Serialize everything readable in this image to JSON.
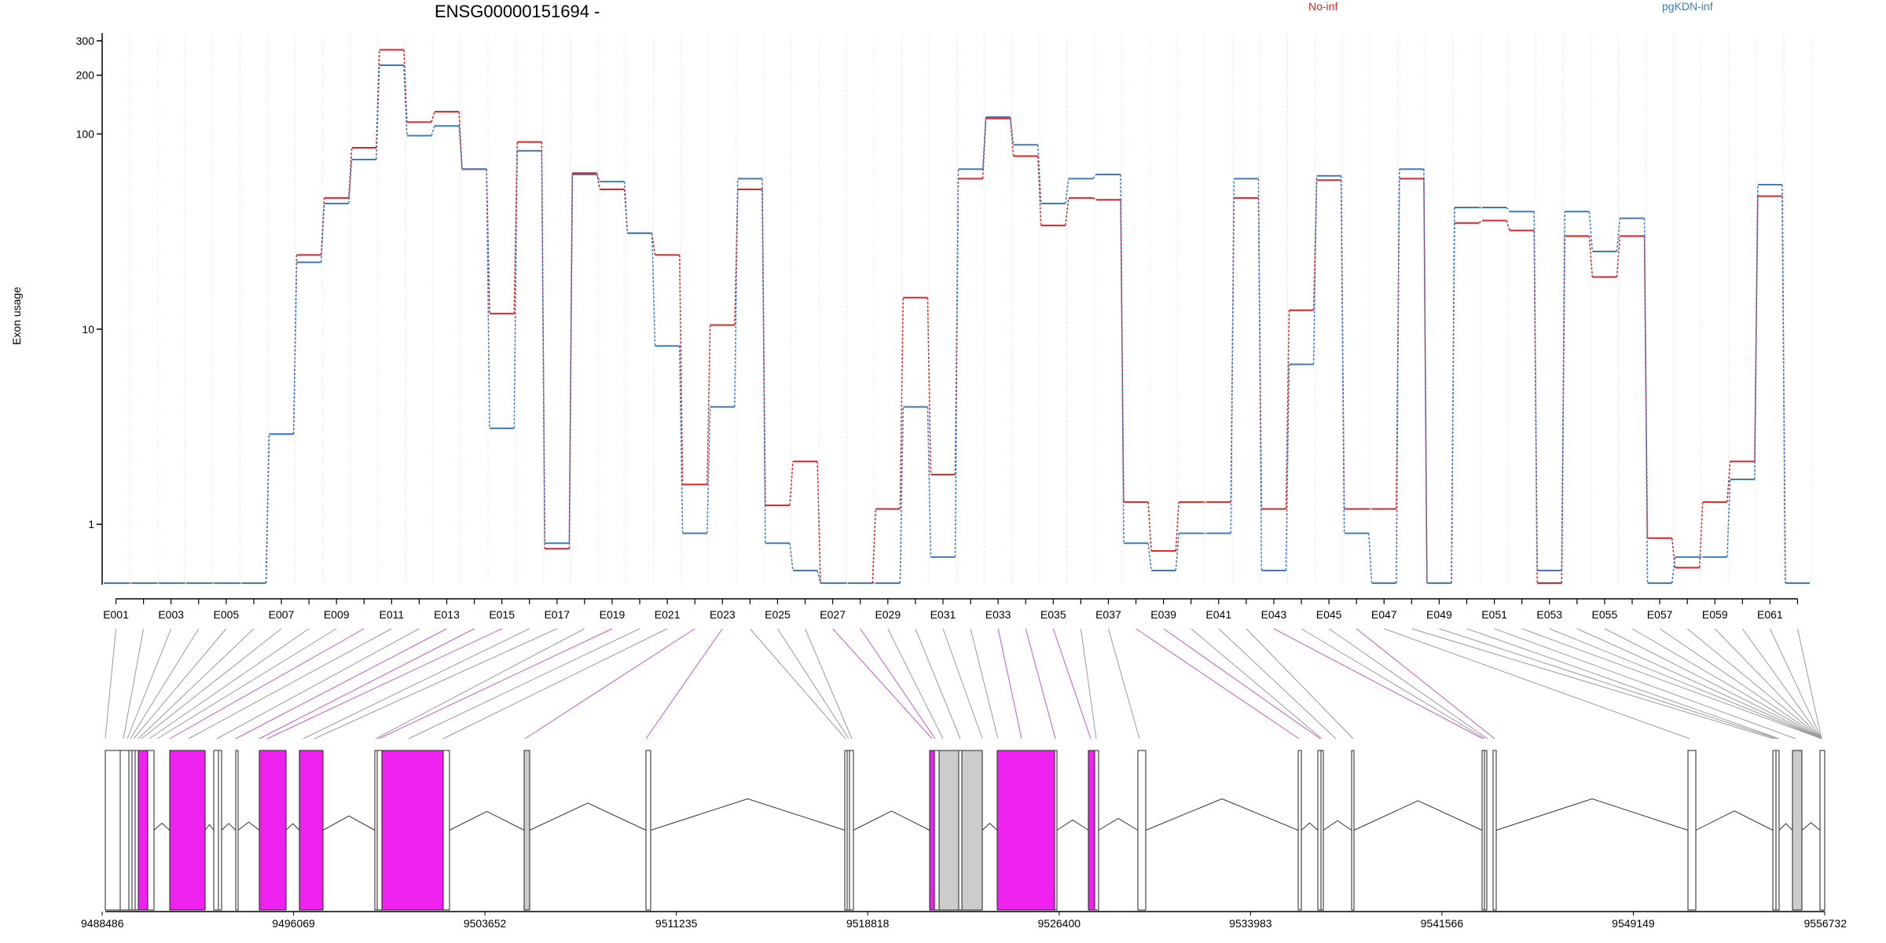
{
  "chart_data": {
    "type": "line",
    "title": "ENSG00000151694 -",
    "ylabel": "Exon usage",
    "yscale": "log",
    "ylim": [
      0.5,
      320
    ],
    "yticks": [
      1,
      10,
      100,
      200,
      300
    ],
    "ytick_labels": [
      "1",
      "10",
      "100",
      "200",
      "300"
    ],
    "grid": "vertical dotted (per exon)",
    "legend_placement": "top",
    "colors": {
      "No-inf": "#d62728",
      "pgKDN-inf": "#3d7bbf",
      "spliced_exon": "#ee22ee",
      "gray_exon": "#cccccc"
    },
    "exons": [
      "E001",
      "E002",
      "E003",
      "E004",
      "E005",
      "E006",
      "E007",
      "E008",
      "E009",
      "E010",
      "E011",
      "E012",
      "E013",
      "E014",
      "E015",
      "E016",
      "E017",
      "E018",
      "E019",
      "E020",
      "E021",
      "E022",
      "E023",
      "E024",
      "E025",
      "E026",
      "E027",
      "E028",
      "E029",
      "E030",
      "E031",
      "E032",
      "E033",
      "E034",
      "E035",
      "E036",
      "E037",
      "E038",
      "E039",
      "E040",
      "E041",
      "E042",
      "E043",
      "E044",
      "E045",
      "E046",
      "E047",
      "E048",
      "E049",
      "E050",
      "E051",
      "E052",
      "E053",
      "E054",
      "E055",
      "E056",
      "E057",
      "E058",
      "E059",
      "E060",
      "E061",
      "E062"
    ],
    "exon_tick_labels": [
      "E001",
      "E003",
      "E005",
      "E007",
      "E009",
      "E011",
      "E013",
      "E015",
      "E017",
      "E019",
      "E021",
      "E023",
      "E025",
      "E027",
      "E029",
      "E031",
      "E033",
      "E035",
      "E037",
      "E039",
      "E041",
      "E043",
      "E045",
      "E047",
      "E049",
      "E051",
      "E053",
      "E055",
      "E057",
      "E059",
      "E061"
    ],
    "series": [
      {
        "name": "No-inf",
        "values": [
          0.5,
          0.5,
          0.5,
          0.5,
          0.5,
          0.5,
          2.9,
          24,
          47,
          85,
          270,
          115,
          130,
          66,
          12,
          91,
          0.75,
          63,
          52,
          31,
          24,
          1.6,
          10.5,
          52,
          1.25,
          2.1,
          0.5,
          0.5,
          1.2,
          14.5,
          1.8,
          59,
          120,
          77,
          34,
          47,
          46,
          1.3,
          0.73,
          1.3,
          1.3,
          47,
          1.2,
          12.5,
          58,
          1.2,
          1.2,
          59,
          0.5,
          35,
          36,
          32,
          0.5,
          30,
          18.5,
          30,
          0.85,
          0.6,
          1.3,
          2.1,
          48,
          0.5
        ]
      },
      {
        "name": "pgKDN-inf",
        "values": [
          0.5,
          0.5,
          0.5,
          0.5,
          0.5,
          0.5,
          2.9,
          22,
          44,
          74,
          225,
          98,
          110,
          66,
          3.1,
          82,
          0.8,
          62,
          57,
          31,
          8.2,
          0.9,
          4,
          59,
          0.8,
          0.58,
          0.5,
          0.5,
          0.5,
          4,
          0.68,
          66,
          122,
          88,
          44,
          59,
          62,
          0.8,
          0.58,
          0.9,
          0.9,
          59,
          0.58,
          6.6,
          61,
          0.9,
          0.5,
          66,
          0.5,
          42,
          42,
          40,
          0.58,
          40,
          25,
          37,
          0.5,
          0.68,
          0.68,
          1.7,
          55,
          0.5
        ]
      }
    ],
    "coordinates": [
      "9488486",
      "9496069",
      "9503652",
      "9511235",
      "9518818",
      "9526400",
      "9533983",
      "9541566",
      "9549149",
      "9556732"
    ]
  }
}
